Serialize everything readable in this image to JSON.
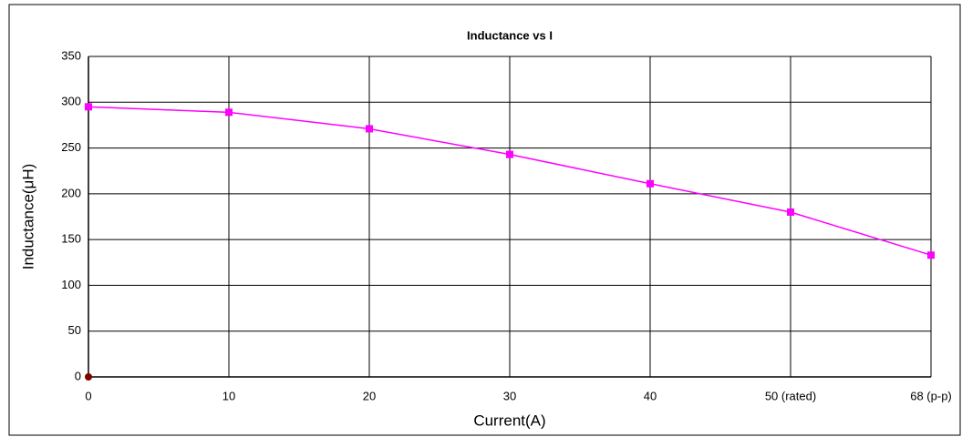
{
  "chart_data": {
    "type": "line",
    "title": "Inductance vs I",
    "x_label": "Current(A)",
    "y_label": "Inductance(μH)",
    "categories": [
      "0",
      "10",
      "20",
      "30",
      "40",
      "50 (rated)",
      "68 (p-p)"
    ],
    "series": [
      {
        "color": "#ff00ff",
        "values": [
          295,
          289,
          271,
          243,
          211,
          180,
          133
        ]
      },
      {
        "color": "#800000",
        "values": [
          0,
          null,
          null,
          null,
          null,
          null,
          null
        ]
      }
    ],
    "ylim": [
      0,
      350
    ],
    "yticks": [
      0,
      50,
      100,
      150,
      200,
      250,
      300,
      350
    ],
    "grid": true
  }
}
